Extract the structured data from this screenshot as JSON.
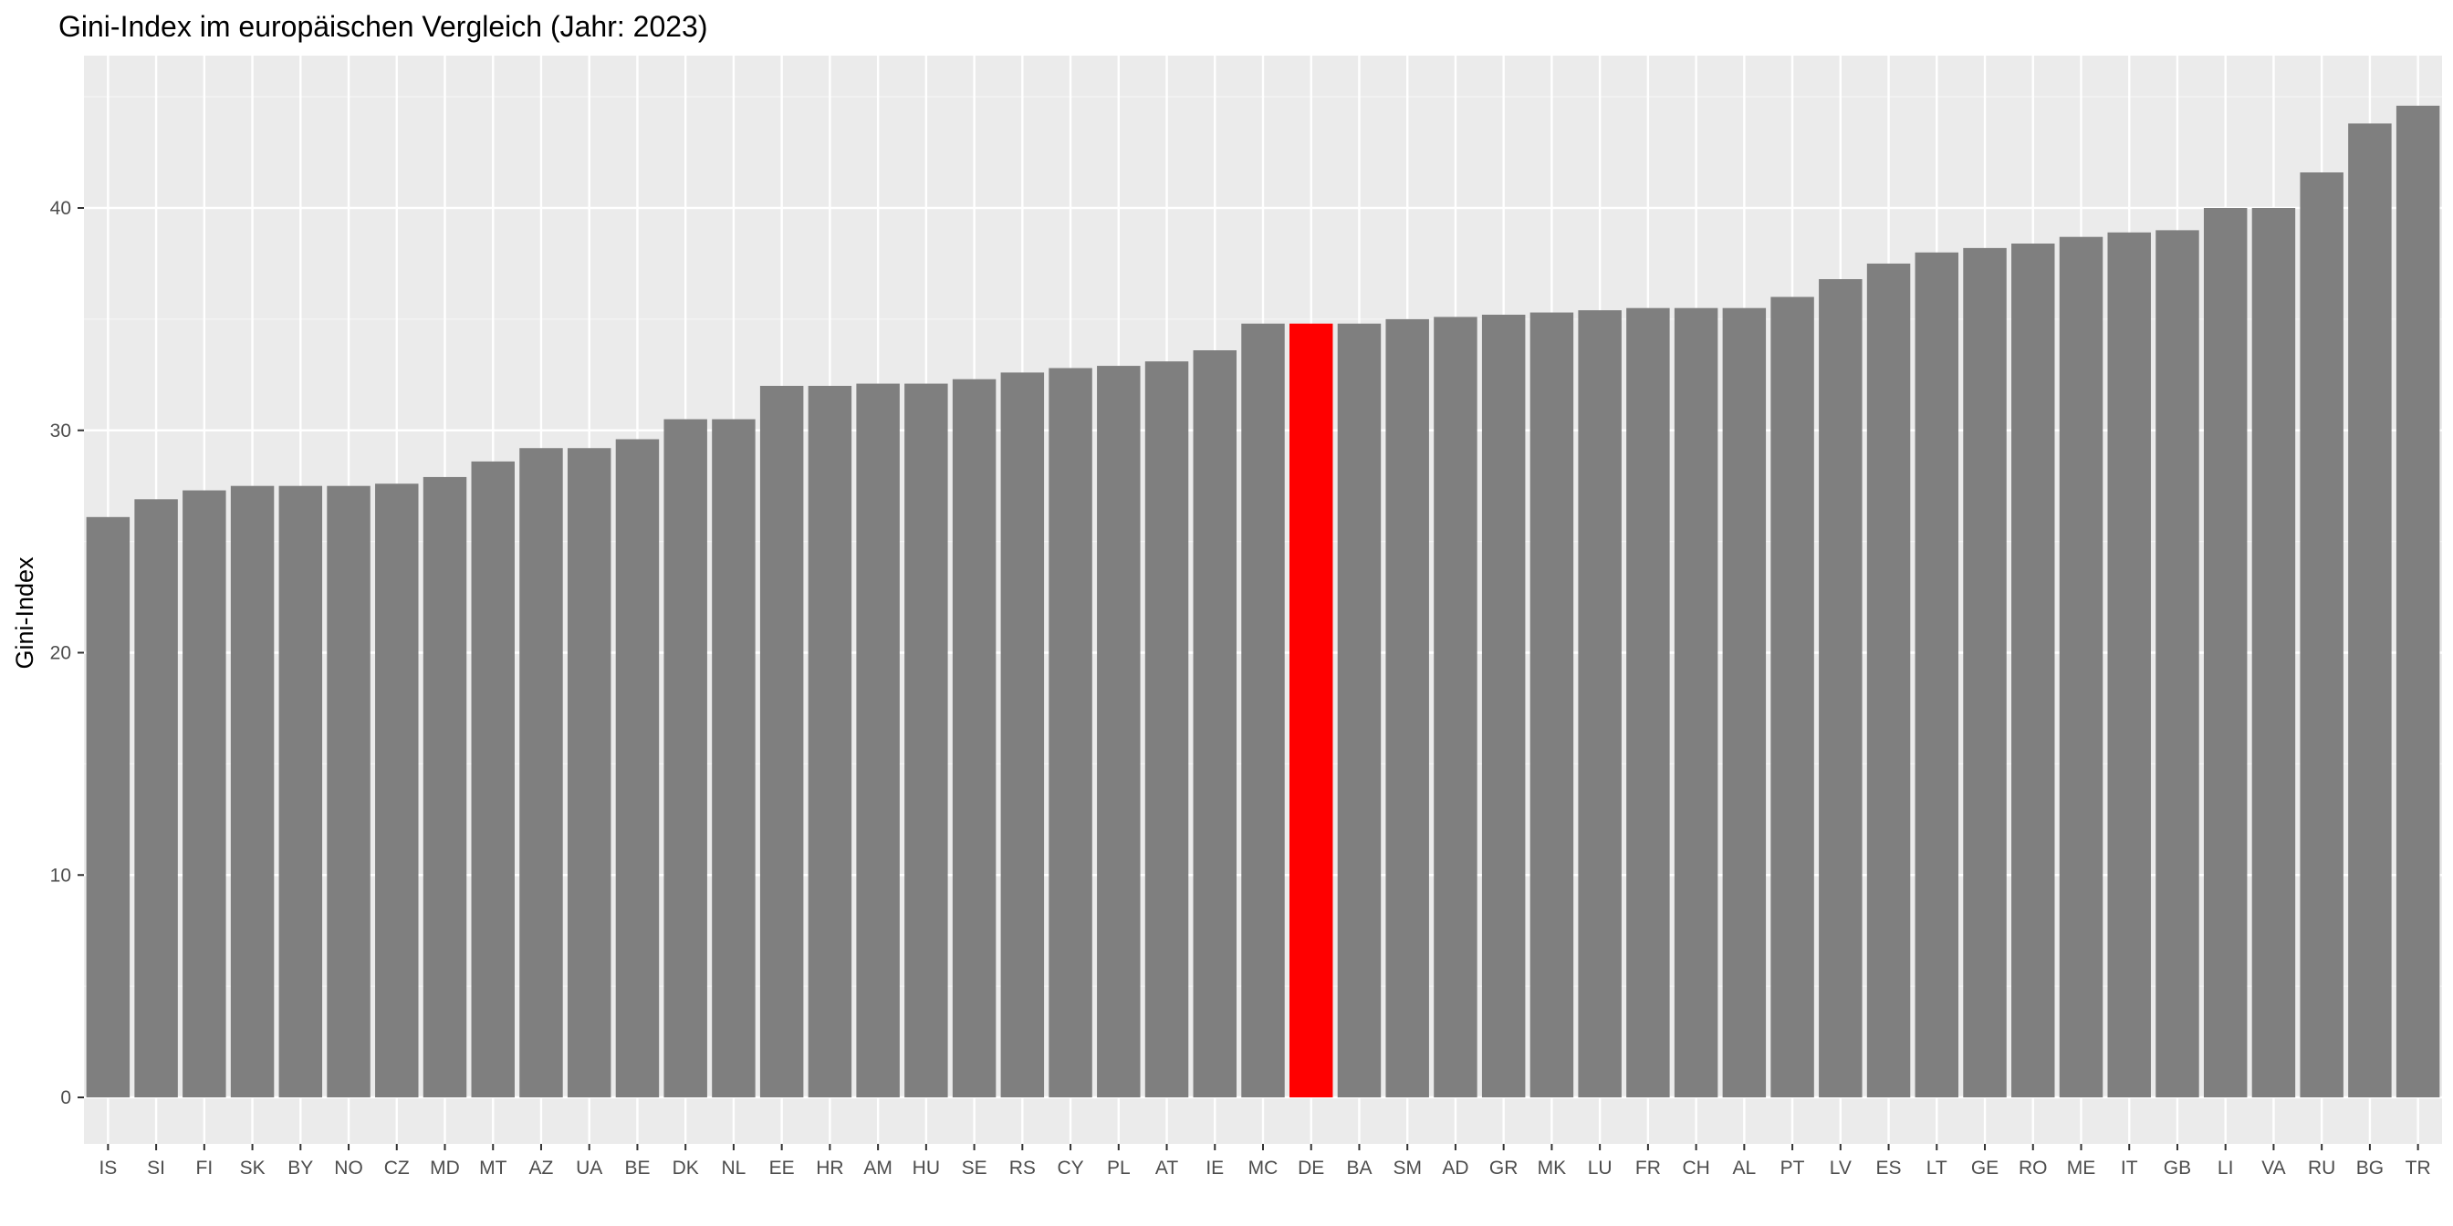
{
  "chart_data": {
    "type": "bar",
    "title": "Gini-Index im europäischen Vergleich (Jahr: 2023)",
    "xlabel": "",
    "ylabel": "Gini-Index",
    "ylim": [
      0,
      46.5
    ],
    "yticks": [
      0,
      10,
      20,
      30,
      40
    ],
    "grid": true,
    "legend": "none",
    "categories": [
      "IS",
      "SI",
      "FI",
      "SK",
      "BY",
      "NO",
      "CZ",
      "MD",
      "MT",
      "AZ",
      "UA",
      "BE",
      "DK",
      "NL",
      "EE",
      "HR",
      "AM",
      "HU",
      "SE",
      "RS",
      "CY",
      "PL",
      "AT",
      "IE",
      "MC",
      "DE",
      "BA",
      "SM",
      "AD",
      "GR",
      "MK",
      "LU",
      "FR",
      "CH",
      "AL",
      "PT",
      "LV",
      "ES",
      "LT",
      "GE",
      "RO",
      "ME",
      "IT",
      "GB",
      "LI",
      "VA",
      "RU",
      "BG",
      "TR"
    ],
    "values": [
      26.1,
      26.9,
      27.3,
      27.5,
      27.5,
      27.5,
      27.6,
      27.9,
      28.6,
      29.2,
      29.2,
      29.6,
      30.5,
      30.5,
      32.0,
      32.0,
      32.1,
      32.1,
      32.3,
      32.6,
      32.8,
      32.9,
      33.1,
      33.6,
      34.8,
      34.8,
      34.8,
      35.0,
      35.1,
      35.2,
      35.3,
      35.4,
      35.5,
      35.5,
      35.5,
      36.0,
      36.8,
      37.5,
      38.0,
      38.2,
      38.4,
      38.7,
      38.9,
      39.0,
      40.0,
      40.0,
      41.6,
      43.8,
      44.6
    ],
    "highlight": "DE",
    "colors": {
      "bar": "#7f7f7f",
      "highlight": "#ff0000",
      "panel": "#ebebeb",
      "grid_major": "#ffffff",
      "grid_minor": "#f5f5f5",
      "tick_text": "#4d4d4d",
      "tick_mark": "#333333"
    }
  }
}
